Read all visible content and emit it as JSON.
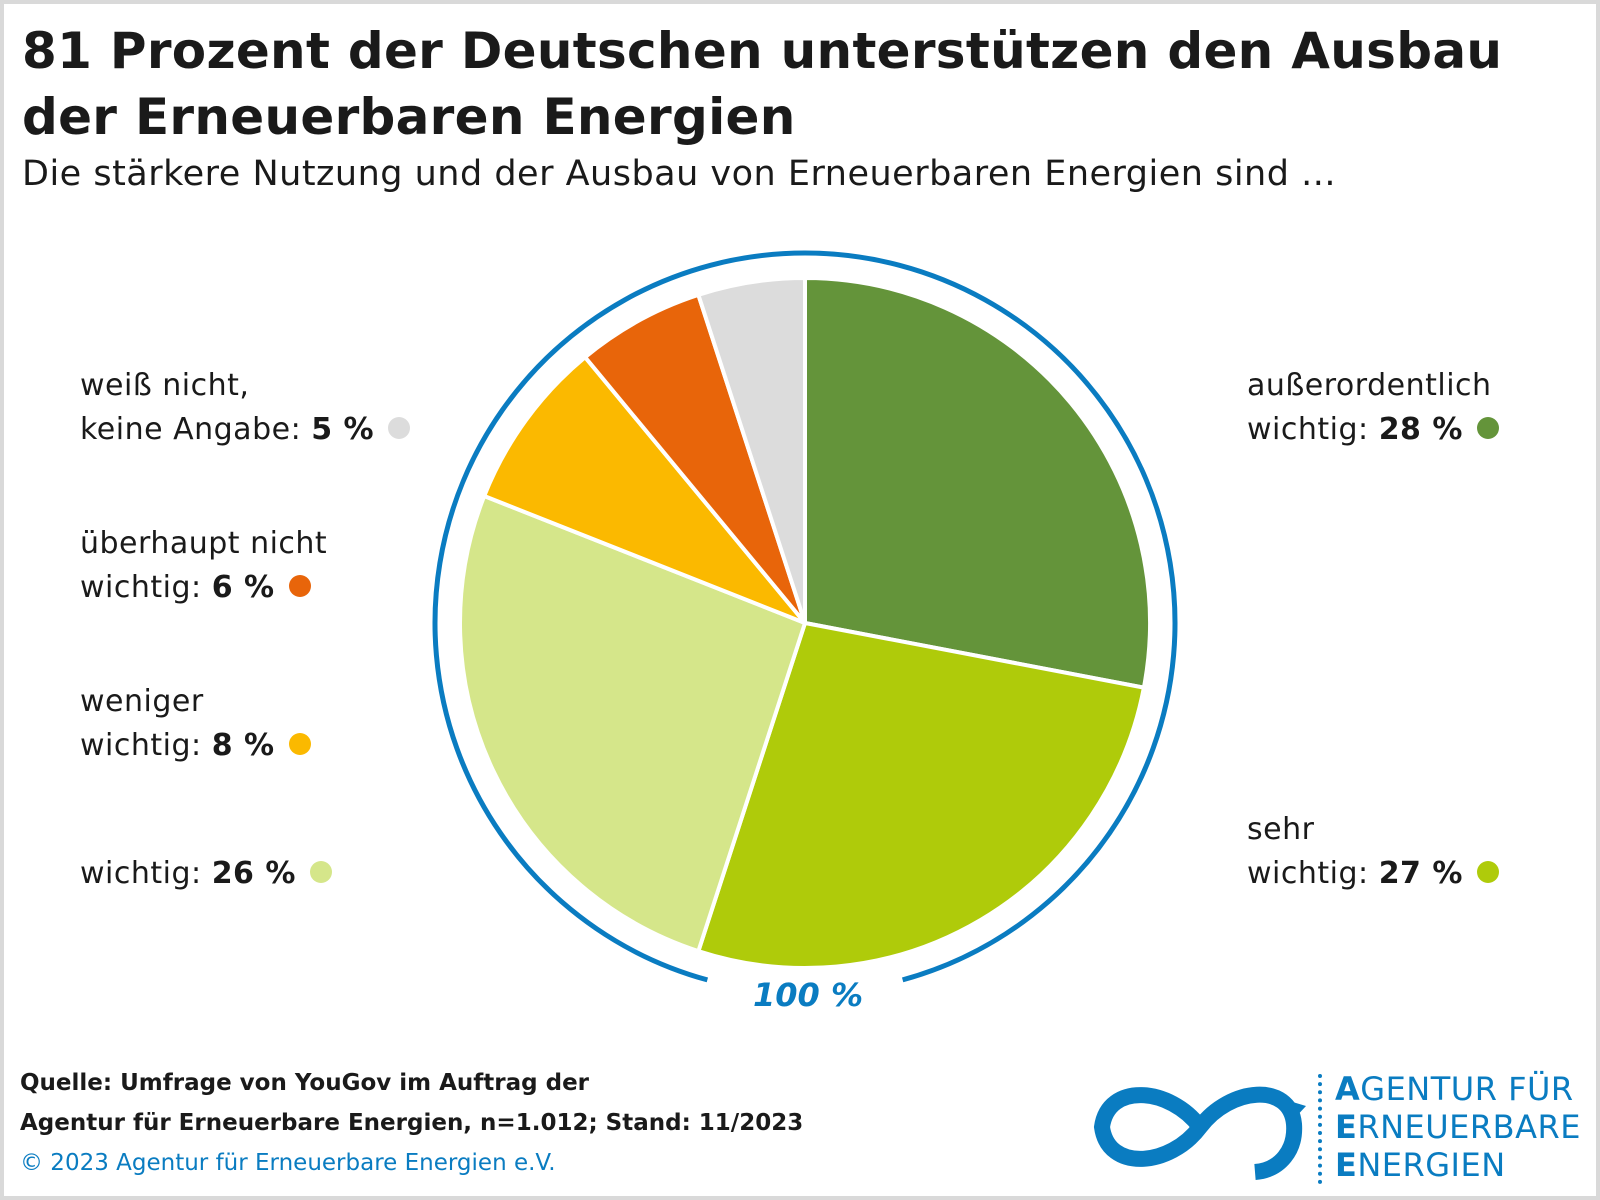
{
  "title_line1": "81 Prozent der Deutschen unterstützen den Ausbau",
  "title_line2": "der Erneuerbaren Energien",
  "subtitle": "Die stärkere Nutzung und der Ausbau von Erneuerbaren Energien sind ...",
  "chart_data": {
    "type": "pie",
    "total_label": "100 %",
    "slices": [
      {
        "line1": "außerordentlich",
        "line2": "wichtig:",
        "value": 28,
        "value_label": "28 %",
        "color": "#64943a"
      },
      {
        "line1": "sehr",
        "line2": "wichtig:",
        "value": 27,
        "value_label": "27 %",
        "color": "#afcb0a"
      },
      {
        "line1": "",
        "line2": "wichtig:",
        "value": 26,
        "value_label": "26 %",
        "color": "#d5e68a"
      },
      {
        "line1": "weniger",
        "line2": "wichtig:",
        "value": 8,
        "value_label": "8 %",
        "color": "#fbb900"
      },
      {
        "line1": "überhaupt nicht",
        "line2": "wichtig:",
        "value": 6,
        "value_label": "6 %",
        "color": "#e8650a"
      },
      {
        "line1": "weiß nicht,",
        "line2": "keine Angabe:",
        "value": 5,
        "value_label": "5 %",
        "color": "#dcdcdc"
      }
    ],
    "ring_color": "#0a7cc1"
  },
  "footer": {
    "source_line1": "Quelle: Umfrage von YouGov im Auftrag der",
    "source_line2": "Agentur für Erneuerbare Energien, n=1.012; Stand: 11/2023",
    "copyright": "© 2023 Agentur für Erneuerbare Energien e.V."
  },
  "logo": {
    "line1_initial": "A",
    "line1_rest": "GENTUR FÜR",
    "line2_initial": "E",
    "line2_rest": "RNEUERBARE",
    "line3_initial": "E",
    "line3_rest": "NERGIEN",
    "icon": "infinity-arrow-icon"
  }
}
